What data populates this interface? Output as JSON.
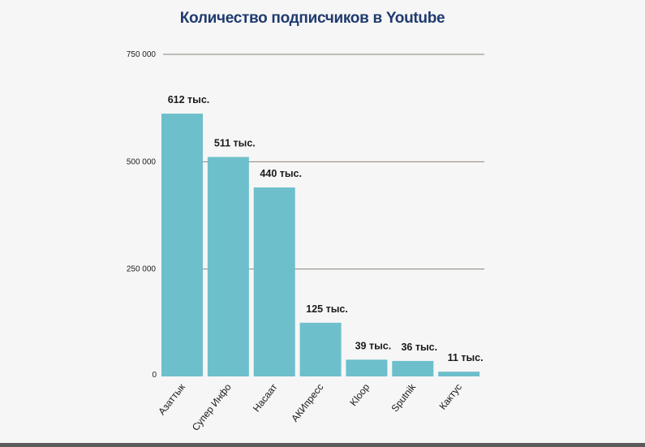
{
  "chart_data": {
    "type": "bar",
    "title": "Количество подписчиков в Youtube",
    "categories": [
      "Азаттык",
      "Супер Инфо",
      "Насаат",
      "АКИпресс",
      "Kloop",
      "Sputnik",
      "Кактус"
    ],
    "values": [
      612000,
      511000,
      440000,
      125000,
      39000,
      36000,
      11000
    ],
    "data_labels": [
      "612 тыс.",
      "511 тыс.",
      "440 тыс.",
      "125 тыс.",
      "39 тыс.",
      "36 тыс.",
      "11 тыс."
    ],
    "yticks": [
      0,
      250000,
      500000,
      750000
    ],
    "ytick_labels": [
      "0",
      "250 000",
      "500 000",
      "750 000"
    ],
    "ylim": [
      0,
      750000
    ],
    "grid": true,
    "colors": {
      "bar": "#6dbfcb",
      "grid": "#8c8378",
      "title": "#1f3a6e"
    }
  }
}
